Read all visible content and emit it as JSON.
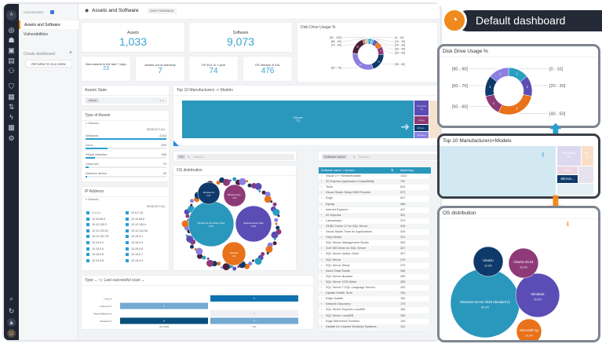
{
  "sidebar": {
    "section": "DASHBOARD",
    "items": [
      {
        "label": "Assets and Software",
        "active": true
      },
      {
        "label": "Vulnerabilities"
      }
    ],
    "create_label": "Create dashboard",
    "return_label": "RETURN TO OLD VIEW",
    "avatar": "A"
  },
  "header": {
    "title": "Assets and Software",
    "feedback": "GIVE FEEDBACK"
  },
  "kpis": {
    "assets": {
      "label": "Assets",
      "value": "1,033"
    },
    "software": {
      "label": "Software",
      "value": "9,073"
    },
    "new_assets": {
      "label": "New assets in the last 7 days",
      "value": "23"
    },
    "warranty": {
      "label": "Assets out of warranty",
      "value": "7"
    },
    "eol_year": {
      "label": "OS EoL in 1 year",
      "value": "74"
    },
    "eol_already": {
      "label": "OS already in EoL",
      "value": "476"
    }
  },
  "filters": {
    "state": {
      "title": "Assets State",
      "chip": "Active"
    },
    "types": {
      "title": "Type of Assets",
      "search": "Search...",
      "deselect": "DESELECT ALL",
      "items": [
        {
          "name": "Windows",
          "count": "2234",
          "pct": 1.0
        },
        {
          "name": "Linux",
          "count": "599",
          "pct": 0.27
        },
        {
          "name": "Virtual Machine",
          "count": "266",
          "pct": 0.12
        },
        {
          "name": "Unknown",
          "count": "79",
          "pct": 0.035
        },
        {
          "name": "Network device",
          "count": "45",
          "pct": 0.02
        }
      ]
    },
    "ip": {
      "title": "IP Address",
      "search": "Search...",
      "deselect": "DESELECT ALL",
      "items": [
        "1.1.1.1",
        "10.0.2.15",
        "10.10.65.5",
        "10.10.65.6",
        "10.12.130.2",
        "10.12.130.4",
        "10.12.131.51",
        "10.12.131.54",
        "10.12.131.78",
        "10.15.0.1",
        "10.15.0.2",
        "10.15.0.3",
        "10.15.0.4",
        "10.15.0.5",
        "10.15.0.6",
        "10.15.0.7",
        "10.15.0.8",
        "10.15.0.9"
      ]
    }
  },
  "os_search": {
    "chip": "OS",
    "placeholder": "Search..."
  },
  "sw_search": {
    "chip": "Software name",
    "placeholder": "Search..."
  },
  "software_table": {
    "headers": [
      "Software name > Version",
      "Asset keg"
    ],
    "rows": [
      [
        "Visual C++ Redistributable",
        "1322"
      ],
      [
        "IIS Express Application Compatibility",
        "751"
      ],
      [
        "Tools",
        "624"
      ],
      [
        "Visual Studio Setup WMI Provider",
        "572"
      ],
      [
        "Edge",
        "547"
      ],
      [
        "Npcap",
        "485"
      ],
      [
        "Internet Explorer",
        "447"
      ],
      [
        "IIS Express",
        "391"
      ],
      [
        "Lansweeper",
        "379"
      ],
      [
        "ODBC Driver 17 for SQL Server",
        "349"
      ],
      [
        "Visual Studio Tools for Applications",
        "319"
      ],
      [
        "Help Viewer",
        "311"
      ],
      [
        "SQL Server Management Studio",
        "309"
      ],
      [
        "OLE DB Driver for SQL Server",
        "307"
      ],
      [
        "SQL Server Native Client",
        "307"
      ],
      [
        "SQL Server",
        "279"
      ],
      [
        "SQL Server Setup",
        "279"
      ],
      [
        "Azure Data Studio",
        "266"
      ],
      [
        "SQL Server Browser",
        "265"
      ],
      [
        "SQL Server VSS Writer",
        "265"
      ],
      [
        "SQL Server T-SQL Language Service",
        "252"
      ],
      [
        "Update Health Tools",
        "194"
      ],
      [
        "Edge Update",
        "182"
      ],
      [
        "Network Discovery",
        "179"
      ],
      [
        "SQL Server Express LocalDB",
        "166"
      ],
      [
        "SQL Server LocalDB",
        "165"
      ],
      [
        "Edge WebView2 Runtime",
        "149"
      ],
      [
        "Update for x-based Windows Systems...",
        "141"
      ]
    ]
  },
  "bar_header": {
    "type": "Type",
    "by": "by",
    "field": "Last successful scan"
  },
  "callout_title": "Default dashboard",
  "colors": {
    "accent": "#3aa3d0",
    "orange": "#f08a1c",
    "rail": "#1f2533"
  },
  "chart_data": [
    {
      "id": "disk-main",
      "type": "pie",
      "title": "Disk Drive Usage %",
      "donut": true,
      "categories": [
        "[0 - 10[",
        "[10 - 20[",
        "[20 - 30[",
        "[30 - 40[",
        "[40 - 50[",
        "[50 - 60[",
        "[60 - 70[",
        "[70 - 80[",
        "[80 - 90[",
        "[90 - 100["
      ],
      "values": [
        3,
        2,
        4,
        5,
        7,
        16,
        26,
        15,
        2,
        3
      ],
      "colors": [
        "#2a9fc0",
        "#4bb7d8",
        "#5b4db5",
        "#e8711a",
        "#8e3a78",
        "#0e3a6b",
        "#8b7fe0",
        "#4a1f3a",
        "#b85f1a",
        "#c0c0c0"
      ]
    },
    {
      "id": "disk-callout",
      "type": "pie",
      "title": "Disk Drive Usage %",
      "donut": true,
      "categories": [
        "[0 - 10[",
        "[20 - 30[",
        "[40 - 50[",
        "[50 - 60[",
        "[60 - 70[",
        "[80 - 90["
      ],
      "values": [
        1,
        1,
        2,
        1,
        1,
        1
      ],
      "colors": [
        "#2a9fc0",
        "#5b4db5",
        "#e8711a",
        "#8e3a78",
        "#0e3a6b",
        "#8b7fe0"
      ]
    },
    {
      "id": "treemap-main",
      "type": "treemap",
      "title": "Top 10 Manufacturers -> Models",
      "categories": [
        "VMware",
        "Rockwell",
        "Cisco",
        "Micros...",
        "Amazon"
      ],
      "values": [
        770,
        24,
        null,
        null,
        null
      ]
    },
    {
      "id": "treemap-callout",
      "type": "treemap",
      "title": "Top 10 Manufacturers+Models",
      "categories": [
        "Rockwell",
        "Cisco",
        "Micros...",
        "Ag..."
      ],
      "values": [
        24,
        null,
        null,
        12
      ]
    },
    {
      "id": "os-main",
      "type": "bubble",
      "title": "OS distribution",
      "categories": [
        "Windows 11 Pro Version 21H2",
        "Windows Server 2022",
        "Windows 10",
        "Windows Serv...",
        "Windows"
      ],
      "values": [
        33.8,
        22.8,
        8.3,
        8.3,
        9.0
      ]
    },
    {
      "id": "os-callout",
      "type": "bubble",
      "title": "OS distribution",
      "categories": [
        "Windows Server 2019 Standard (1",
        "Windows",
        "Ubuntu",
        "Ubuntu 20.04",
        "Microsoft Hg"
      ],
      "values": [
        50.0,
        20.0,
        10.0,
        10.0,
        10.0
      ]
    },
    {
      "id": "scan-bars",
      "type": "bar",
      "orientation": "horizontal",
      "categories": [
        "Linux",
        "Unknown",
        "Virtual Machine",
        "Windows"
      ],
      "x": [
        "Jan 2025",
        "N/A"
      ],
      "series": [
        {
          "name": "Jan 2025",
          "values": [
            0,
            4,
            0,
            8
          ]
        },
        {
          "name": "N/A",
          "values": [
            5,
            0,
            1,
            4
          ]
        }
      ]
    }
  ]
}
